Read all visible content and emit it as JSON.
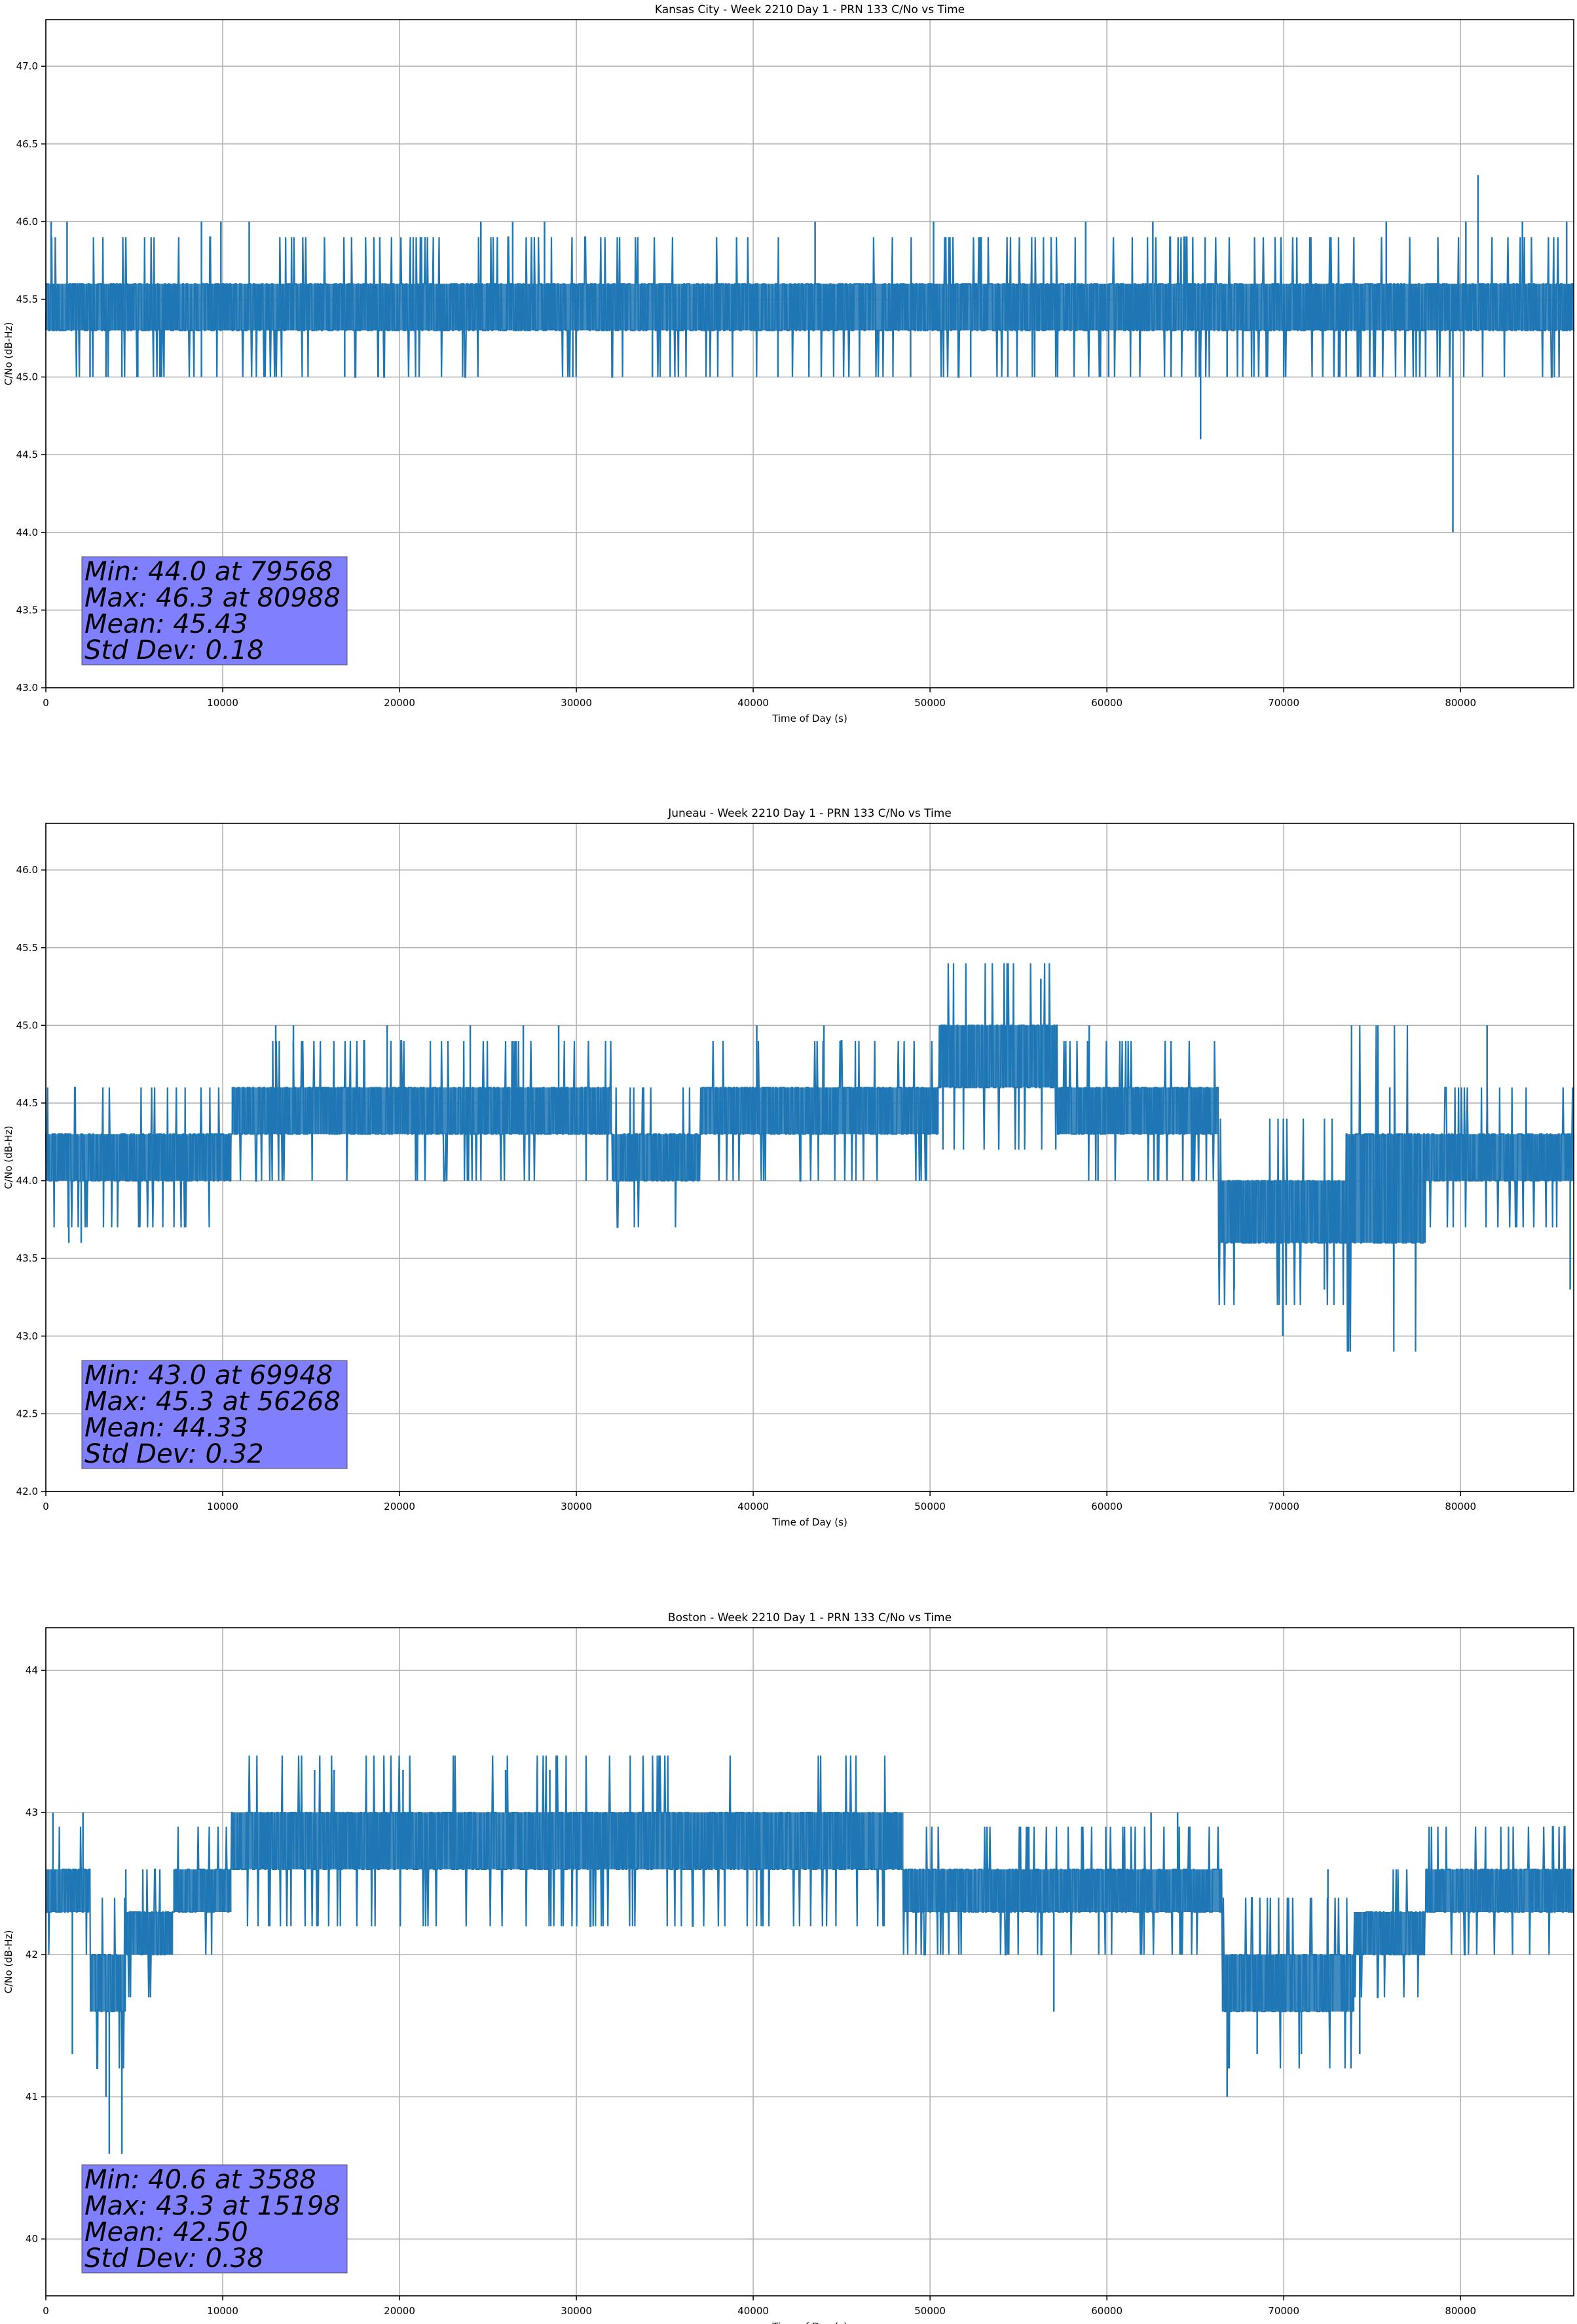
{
  "colors": {
    "series": "#1f77b4",
    "grid": "#b0b0b0",
    "stats_box": "#8080ff",
    "axes": "#000000"
  },
  "chart_data": [
    {
      "type": "line",
      "title": "Kansas City - Week 2210 Day 1 - PRN 133 C/No vs Time",
      "xlabel": "Time of Day (s)",
      "ylabel": "C/No (dB-Hz)",
      "xlim": [
        0,
        86400
      ],
      "ylim": [
        43.0,
        47.3
      ],
      "xticks": [
        0,
        10000,
        20000,
        30000,
        40000,
        50000,
        60000,
        70000,
        80000
      ],
      "yticks": [
        43.0,
        43.5,
        44.0,
        44.5,
        45.0,
        45.5,
        46.0,
        46.5,
        47.0
      ],
      "ytick_decimals": 1,
      "grid": true,
      "series": [
        {
          "values_summary": "dense noisy trace centred near 45.4 dB-Hz",
          "base_band": [
            45.3,
            45.6
          ],
          "lower_spikes": [
            [
              2500,
              45.0
            ],
            [
              3400,
              45.0
            ],
            [
              4300,
              45.0
            ],
            [
              5200,
              45.0
            ],
            [
              6500,
              45.0
            ],
            [
              8800,
              45.0
            ],
            [
              16900,
              45.0
            ],
            [
              17500,
              45.0
            ],
            [
              18800,
              45.0
            ],
            [
              29800,
              45.0
            ],
            [
              34300,
              45.0
            ],
            [
              41400,
              45.0
            ],
            [
              48900,
              45.0
            ],
            [
              52300,
              45.0
            ],
            [
              54400,
              45.0
            ],
            [
              60100,
              45.0
            ],
            [
              65300,
              44.6
            ],
            [
              66800,
              45.0
            ],
            [
              70000,
              45.0
            ],
            [
              73100,
              45.0
            ],
            [
              79568,
              44.0
            ]
          ],
          "upper_spikes": [
            [
              300,
              46.0
            ],
            [
              1200,
              46.0
            ],
            [
              8800,
              46.0
            ],
            [
              9900,
              46.0
            ],
            [
              11500,
              46.0
            ],
            [
              24600,
              46.0
            ],
            [
              26400,
              46.0
            ],
            [
              28200,
              46.0
            ],
            [
              43500,
              46.0
            ],
            [
              50200,
              46.0
            ],
            [
              58800,
              46.0
            ],
            [
              62600,
              46.0
            ],
            [
              75800,
              46.0
            ],
            [
              80300,
              46.0
            ],
            [
              80988,
              46.3
            ],
            [
              83500,
              46.0
            ],
            [
              86000,
              46.0
            ]
          ]
        }
      ],
      "stats": [
        "Min: 44.0 at 79568",
        "Max: 46.3 at 80988",
        "Mean: 45.43",
        "Std Dev: 0.18"
      ]
    },
    {
      "type": "line",
      "title": "Juneau - Week 2210 Day 1 - PRN 133 C/No vs Time",
      "xlabel": "Time of Day (s)",
      "ylabel": "C/No (dB-Hz)",
      "xlim": [
        0,
        86400
      ],
      "ylim": [
        42.0,
        46.3
      ],
      "xticks": [
        0,
        10000,
        20000,
        30000,
        40000,
        50000,
        60000,
        70000,
        80000
      ],
      "yticks": [
        42.0,
        42.5,
        43.0,
        43.5,
        44.0,
        44.5,
        45.0,
        45.5,
        46.0
      ],
      "ytick_decimals": 1,
      "grid": true,
      "series": [
        {
          "values_summary": "dense noisy trace, drifting between 43.6 and 45.0 dB-Hz",
          "band_segments": [
            [
              0,
              2000,
              44.0,
              44.3
            ],
            [
              2000,
              10500,
              44.0,
              44.3
            ],
            [
              10500,
              32000,
              44.3,
              44.6
            ],
            [
              32000,
              37000,
              44.0,
              44.3
            ],
            [
              37000,
              50500,
              44.3,
              44.6
            ],
            [
              50500,
              57200,
              44.6,
              45.0
            ],
            [
              57200,
              66300,
              44.3,
              44.6
            ],
            [
              66300,
              73500,
              43.6,
              44.0
            ],
            [
              73500,
              78000,
              43.6,
              44.3
            ],
            [
              78000,
              86400,
              44.0,
              44.3
            ]
          ],
          "lower_spikes": [
            [
              1300,
              43.6
            ],
            [
              2000,
              43.6
            ],
            [
              34000,
              44.0
            ],
            [
              36000,
              44.0
            ],
            [
              59500,
              44.0
            ],
            [
              67200,
              43.3
            ],
            [
              69948,
              43.0
            ],
            [
              72300,
              43.3
            ],
            [
              86200,
              43.3
            ]
          ],
          "upper_spikes": [
            [
              13000,
              45.0
            ],
            [
              14000,
              45.0
            ],
            [
              19300,
              45.0
            ],
            [
              24000,
              45.0
            ],
            [
              27000,
              45.0
            ],
            [
              29000,
              45.0
            ],
            [
              40200,
              45.0
            ],
            [
              44000,
              45.0
            ],
            [
              56268,
              45.3
            ],
            [
              59000,
              45.0
            ],
            [
              76000,
              44.6
            ],
            [
              81500,
              45.0
            ]
          ]
        }
      ],
      "stats": [
        "Min: 43.0 at 69948",
        "Max: 45.3 at 56268",
        "Mean: 44.33",
        "Std Dev: 0.32"
      ]
    },
    {
      "type": "line",
      "title": "Boston - Week 2210 Day 1 - PRN 133 C/No vs Time",
      "xlabel": "Time of Day (s)",
      "ylabel": "C/No (dB-Hz)",
      "xlim": [
        0,
        86400
      ],
      "ylim": [
        39.6,
        44.3
      ],
      "xticks": [
        0,
        10000,
        20000,
        30000,
        40000,
        50000,
        60000,
        70000,
        80000
      ],
      "yticks": [
        40,
        41,
        42,
        43,
        44
      ],
      "ytick_decimals": 0,
      "grid": true,
      "series": [
        {
          "values_summary": "dense noisy trace, 42.0 to 43.0 dB-Hz with a dip near 3500 s and 68000 s",
          "band_segments": [
            [
              0,
              2500,
              42.3,
              42.6
            ],
            [
              2500,
              4500,
              41.6,
              42.0
            ],
            [
              4500,
              7200,
              42.0,
              42.3
            ],
            [
              7200,
              10500,
              42.3,
              42.6
            ],
            [
              10500,
              48500,
              42.6,
              43.0
            ],
            [
              48500,
              66500,
              42.3,
              42.6
            ],
            [
              66500,
              74000,
              41.6,
              42.0
            ],
            [
              74000,
              78000,
              42.0,
              42.3
            ],
            [
              78000,
              86400,
              42.3,
              42.6
            ]
          ],
          "lower_spikes": [
            [
              1500,
              41.3
            ],
            [
              3400,
              41.0
            ],
            [
              3588,
              40.6
            ],
            [
              4300,
              40.6
            ],
            [
              57000,
              41.6
            ],
            [
              66800,
              41.0
            ],
            [
              68500,
              41.3
            ],
            [
              71000,
              41.3
            ],
            [
              74300,
              41.3
            ]
          ],
          "upper_spikes": [
            [
              400,
              43.0
            ],
            [
              2100,
              43.0
            ],
            [
              15198,
              43.3
            ],
            [
              16300,
              43.3
            ],
            [
              20200,
              43.3
            ],
            [
              26000,
              43.3
            ],
            [
              28500,
              43.3
            ],
            [
              62500,
              43.0
            ],
            [
              64000,
              43.0
            ],
            [
              72500,
              42.6
            ],
            [
              84000,
              42.6
            ]
          ]
        }
      ],
      "stats": [
        "Min: 40.6 at 3588",
        "Max: 43.3 at 15198",
        "Mean: 42.50",
        "Std Dev: 0.38"
      ]
    }
  ]
}
